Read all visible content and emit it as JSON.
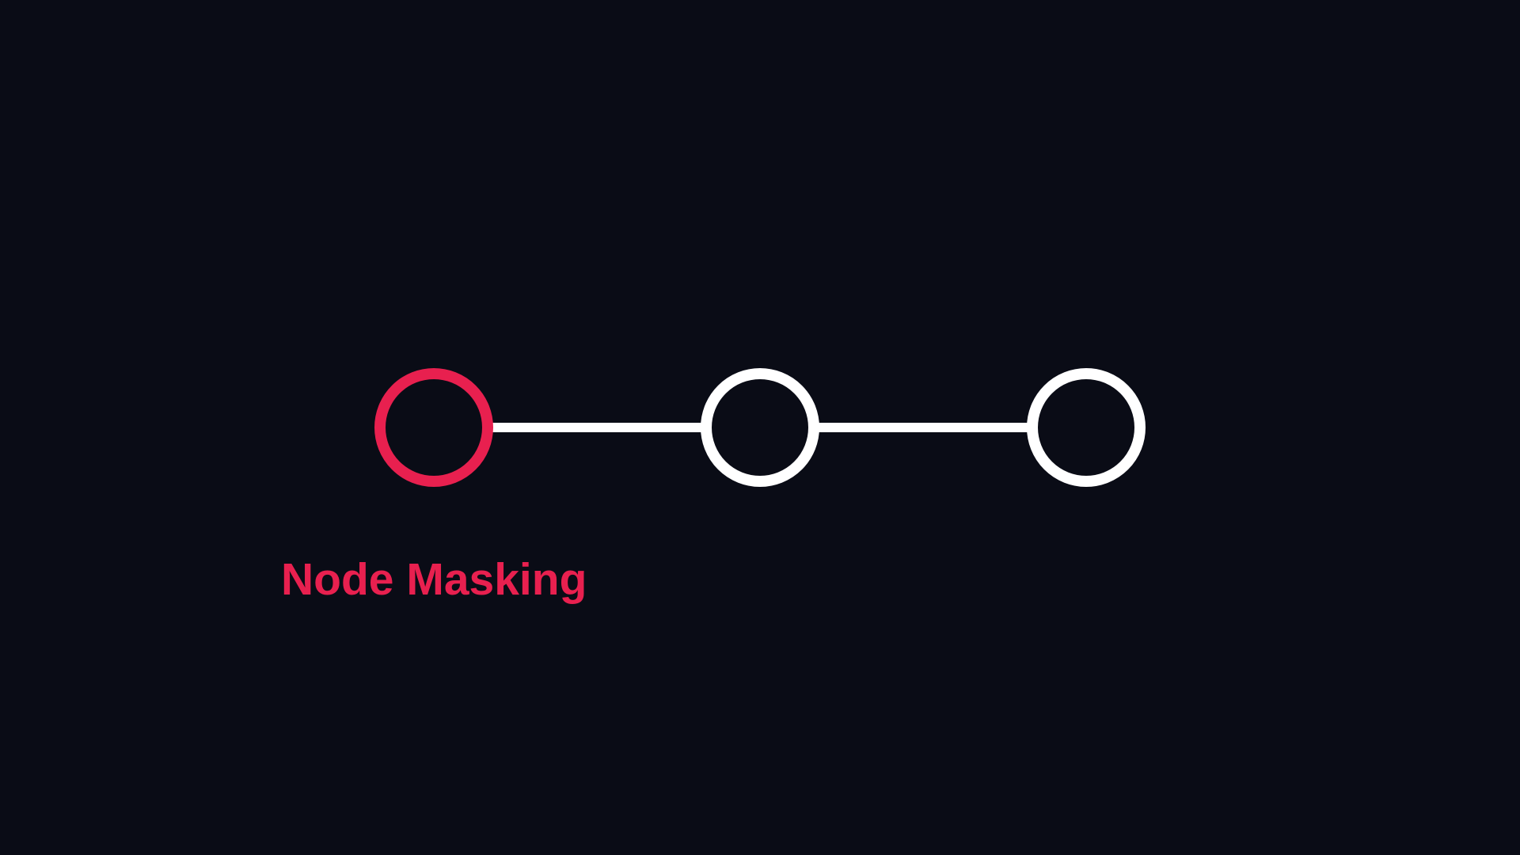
{
  "diagram": {
    "nodes": [
      {
        "id": "node-1",
        "state": "masked"
      },
      {
        "id": "node-2",
        "state": "default"
      },
      {
        "id": "node-3",
        "state": "default"
      }
    ],
    "edges": [
      {
        "from": "node-1",
        "to": "node-2"
      },
      {
        "from": "node-2",
        "to": "node-3"
      }
    ],
    "active_label": "Node Masking"
  },
  "colors": {
    "background": "#0a0c16",
    "highlight": "#e8204f",
    "default": "#ffffff"
  }
}
